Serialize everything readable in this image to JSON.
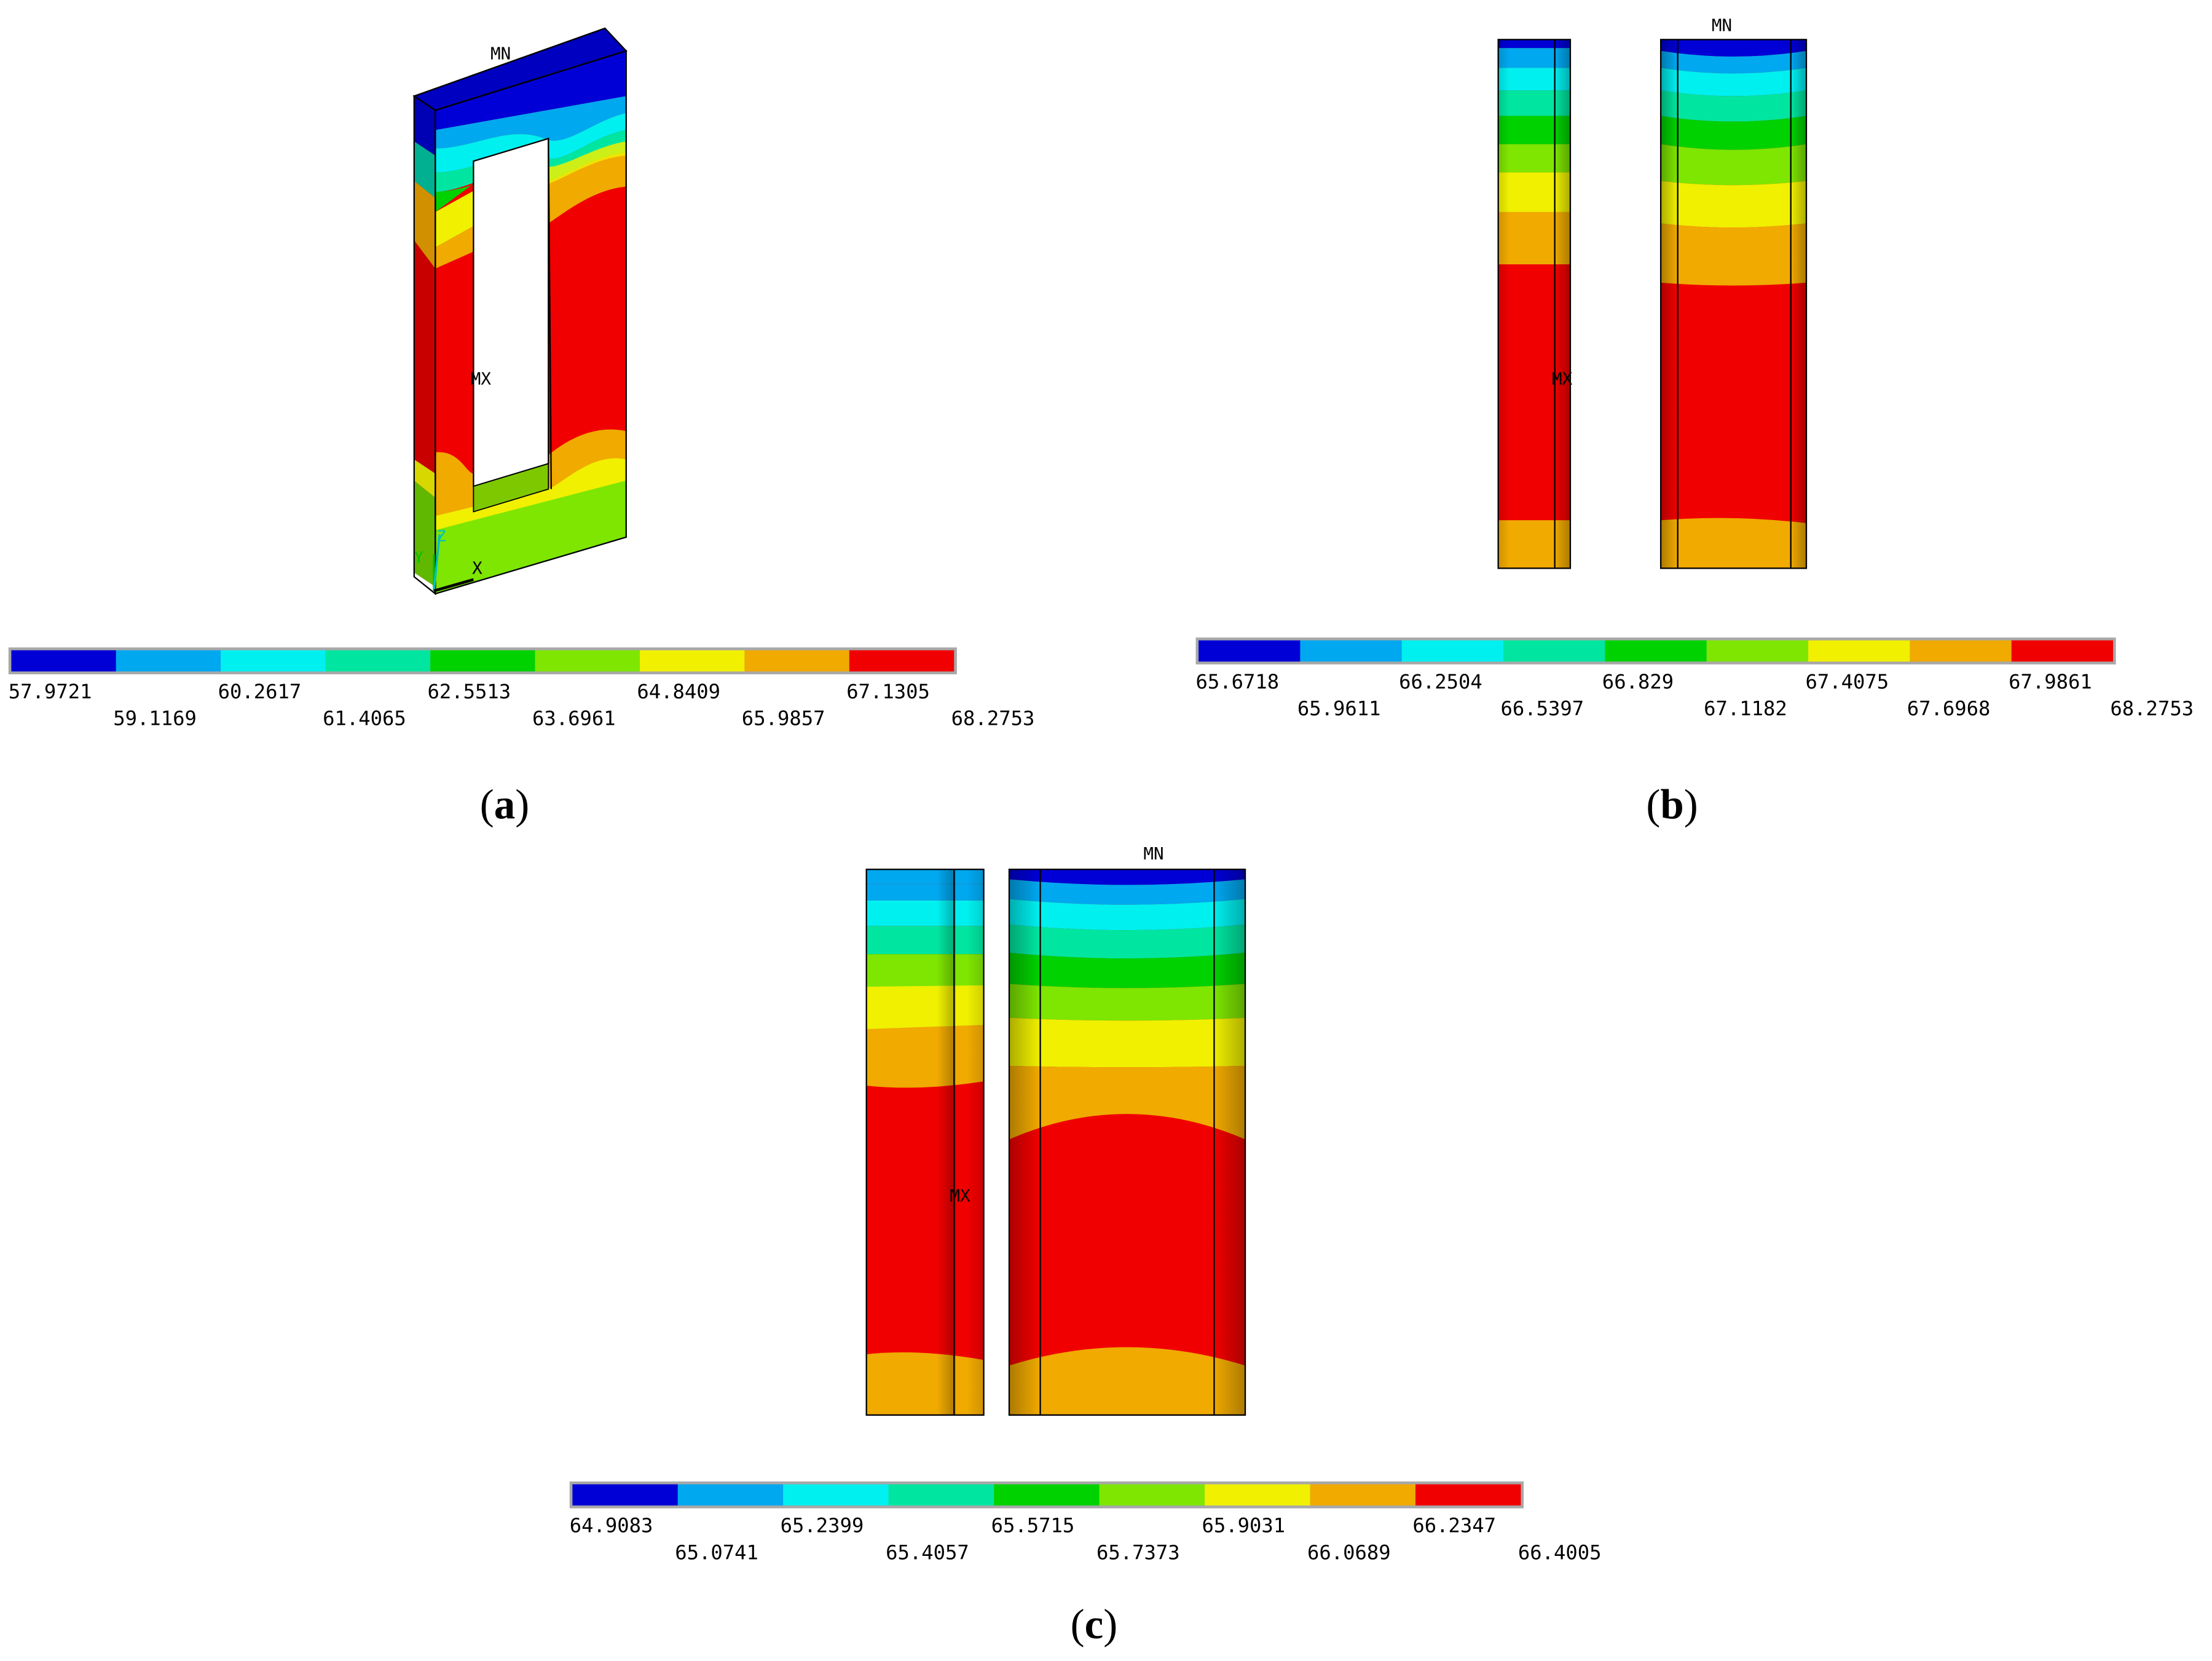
{
  "palette": [
    "#0000d6",
    "#00a8f0",
    "#00f0f0",
    "#00e6a0",
    "#00d200",
    "#7ee600",
    "#f0f000",
    "#f0aa00",
    "#f00000"
  ],
  "panels": [
    {
      "id": "a",
      "caption_letter": "a",
      "max_marker": "MX",
      "min_marker": "MN",
      "axis_labels": [
        "Y",
        "Z",
        "X"
      ],
      "legend_values": [
        "57.9721",
        "59.1169",
        "60.2617",
        "61.4065",
        "62.5513",
        "63.6961",
        "64.8409",
        "65.9857",
        "67.1305",
        "68.2753"
      ]
    },
    {
      "id": "b",
      "caption_letter": "b",
      "max_marker": "MX",
      "min_marker": "MN",
      "legend_values": [
        "65.6718",
        "65.9611",
        "66.2504",
        "66.5397",
        "66.829",
        "67.1182",
        "67.4075",
        "67.6968",
        "67.9861",
        "68.2753"
      ]
    },
    {
      "id": "c",
      "caption_letter": "c",
      "max_marker": "MX",
      "min_marker": "MN",
      "legend_values": [
        "64.9083",
        "65.0741",
        "65.2399",
        "65.4057",
        "65.5715",
        "65.7373",
        "65.9031",
        "66.0689",
        "66.2347",
        "66.4005"
      ]
    }
  ]
}
